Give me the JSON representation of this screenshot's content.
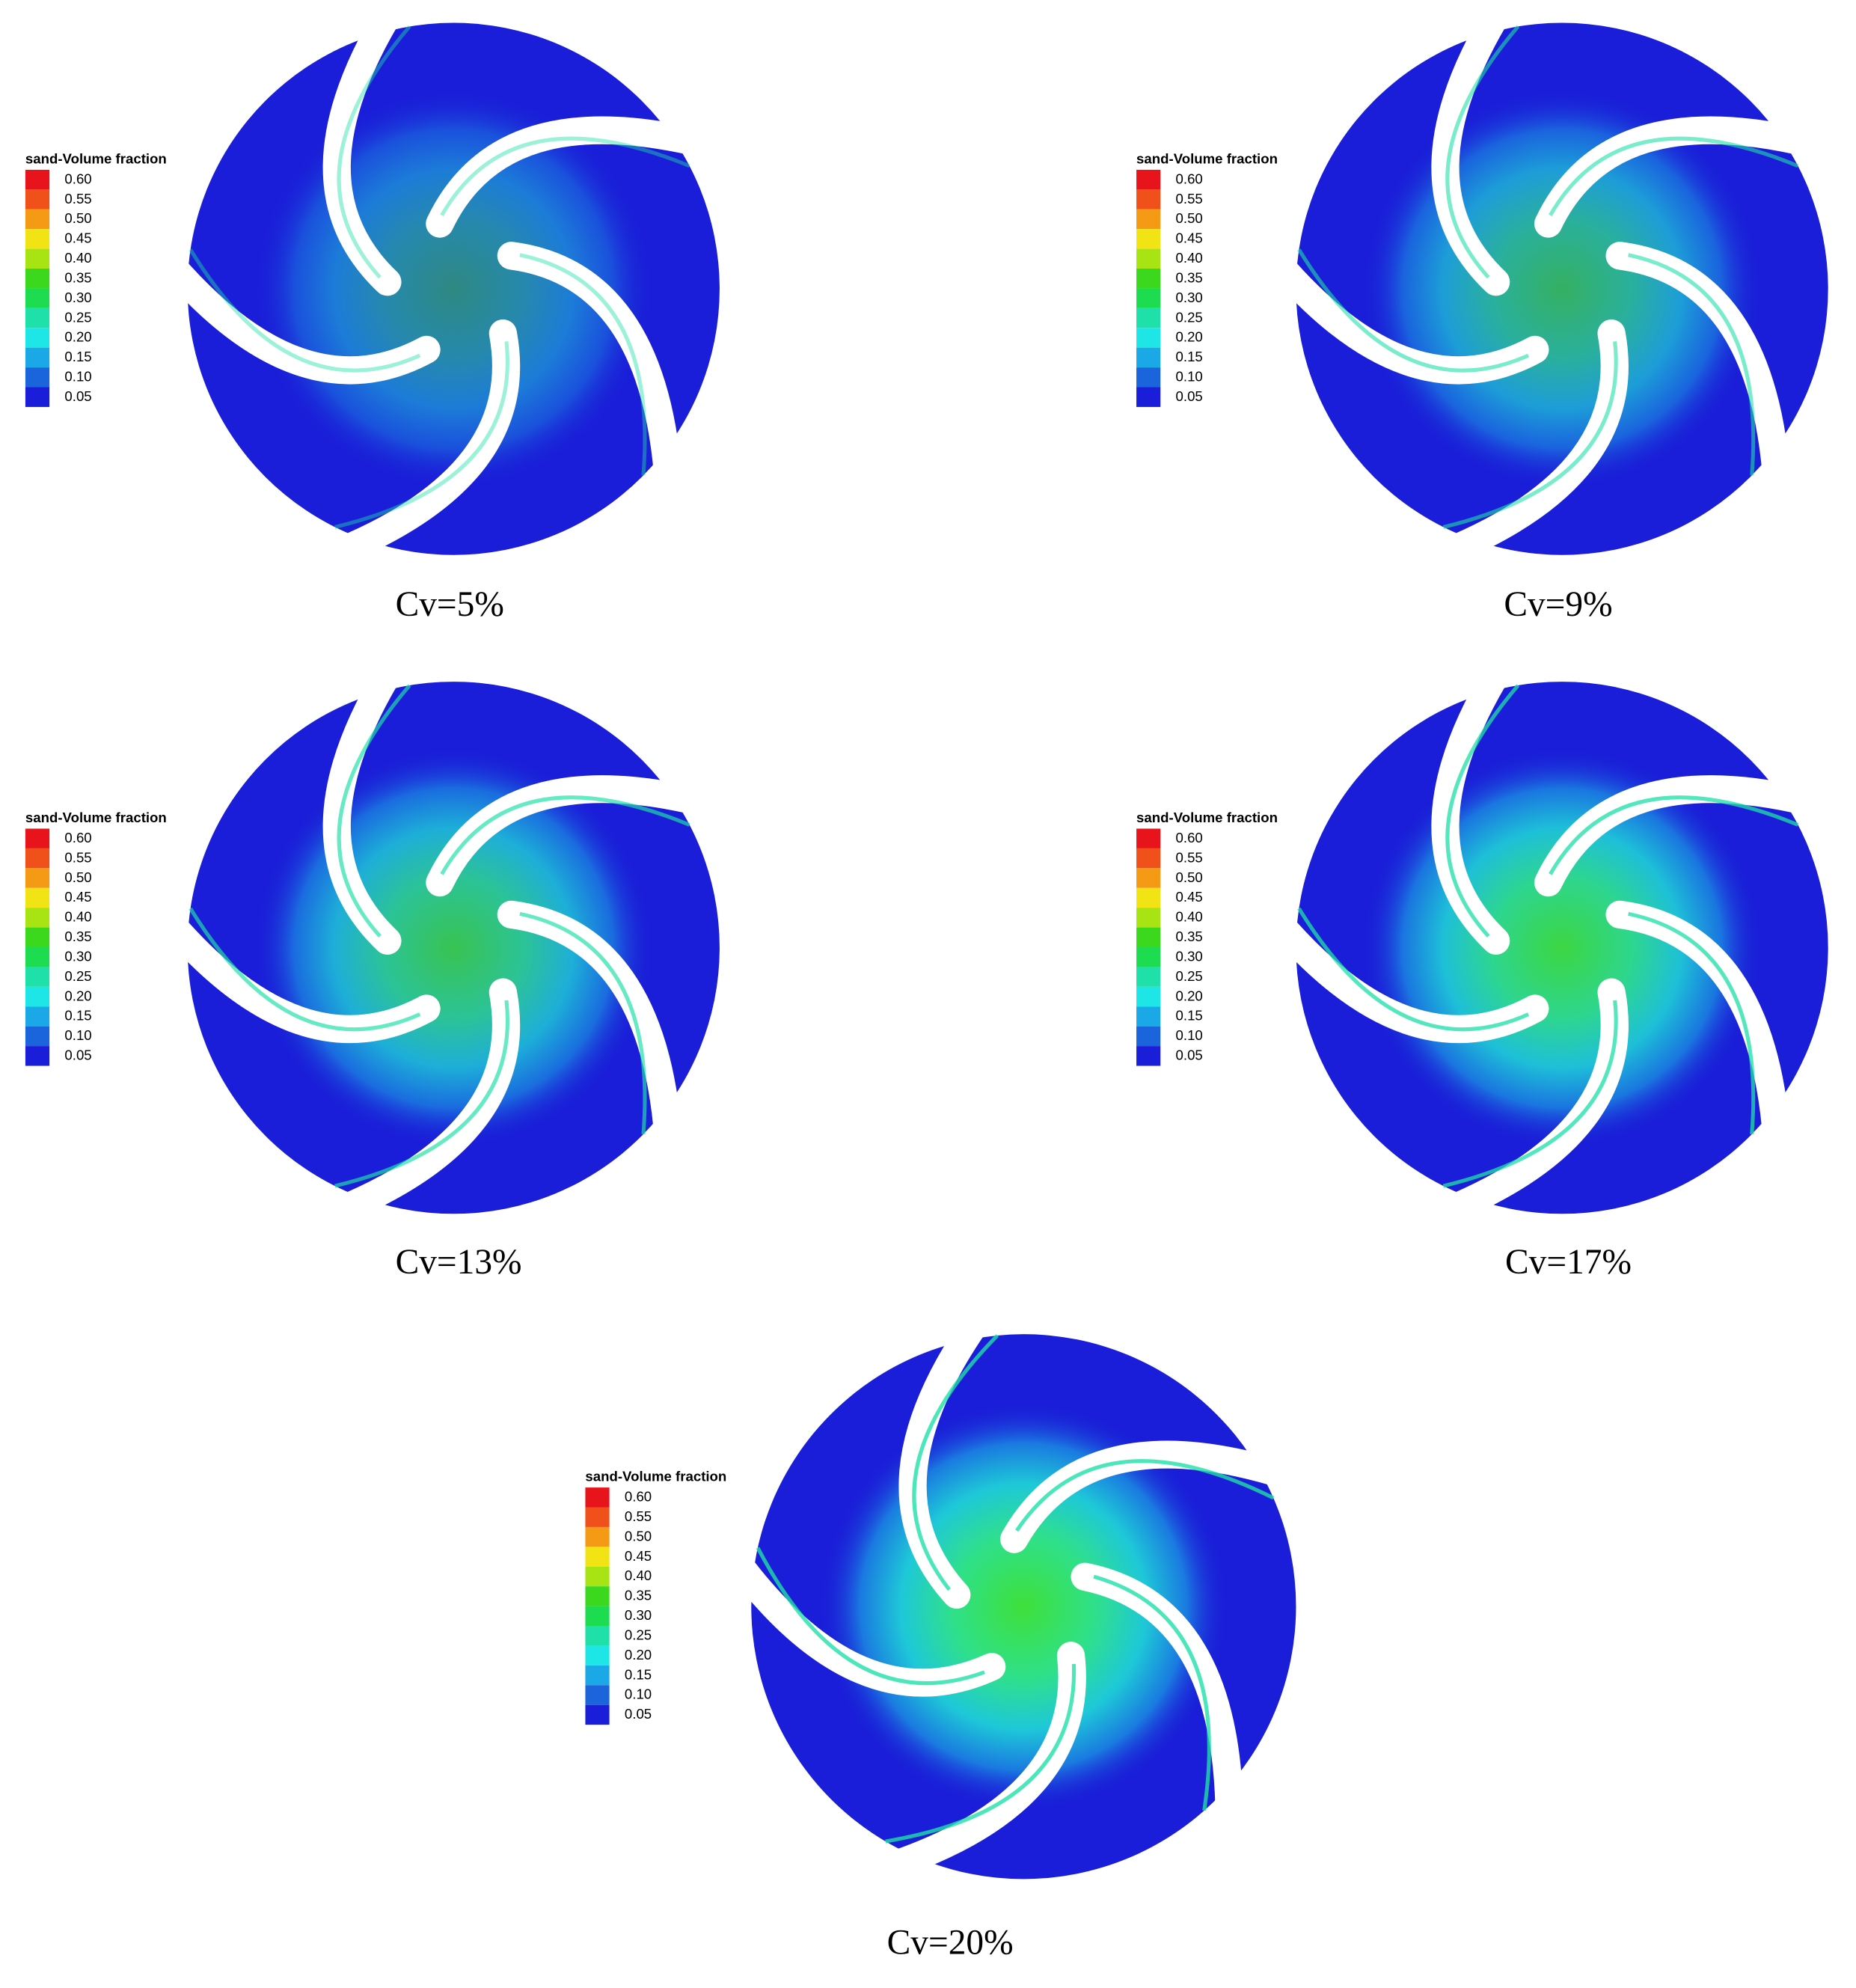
{
  "panels": [
    {
      "legend": {
        "title": "sand-Volume fraction",
        "levels": [
          "0.60",
          "0.55",
          "0.50",
          "0.45",
          "0.40",
          "0.35",
          "0.30",
          "0.25",
          "0.20",
          "0.15",
          "0.10",
          "0.05"
        ]
      },
      "caption": "Cv=5%"
    },
    {
      "legend": {
        "title": "sand-Volume fraction",
        "levels": [
          "0.60",
          "0.55",
          "0.50",
          "0.45",
          "0.40",
          "0.35",
          "0.30",
          "0.25",
          "0.20",
          "0.15",
          "0.10",
          "0.05"
        ]
      },
      "caption": "Cv=9%"
    },
    {
      "legend": {
        "title": "sand-Volume fraction",
        "levels": [
          "0.60",
          "0.55",
          "0.50",
          "0.45",
          "0.40",
          "0.35",
          "0.30",
          "0.25",
          "0.20",
          "0.15",
          "0.10",
          "0.05"
        ]
      },
      "caption": "Cv=13%"
    },
    {
      "legend": {
        "title": "sand-Volume fraction",
        "levels": [
          "0.60",
          "0.55",
          "0.50",
          "0.45",
          "0.40",
          "0.35",
          "0.30",
          "0.25",
          "0.20",
          "0.15",
          "0.10",
          "0.05"
        ]
      },
      "caption": "Cv=17%"
    },
    {
      "legend": {
        "title": "sand-Volume fraction",
        "levels": [
          "0.60",
          "0.55",
          "0.50",
          "0.45",
          "0.40",
          "0.35",
          "0.30",
          "0.25",
          "0.20",
          "0.15",
          "0.10",
          "0.05"
        ]
      },
      "caption": "Cv=20%"
    }
  ]
}
